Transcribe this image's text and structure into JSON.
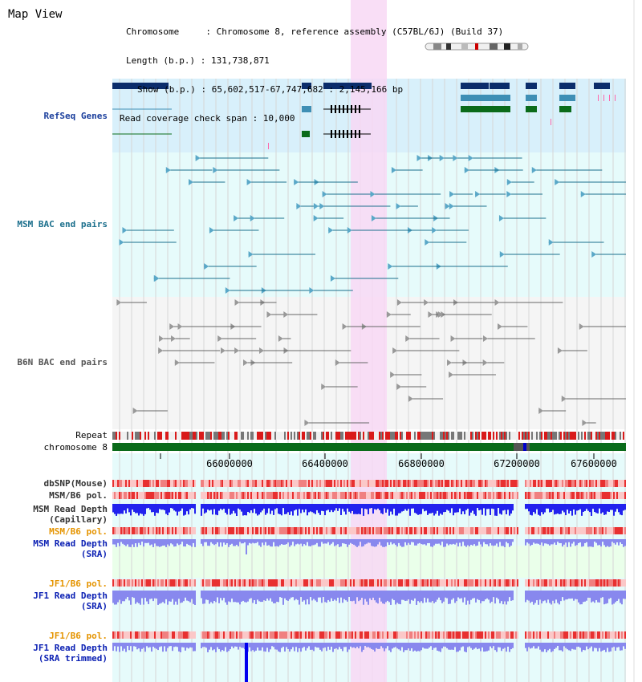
{
  "view": {
    "title": "Map View",
    "info": [
      "Chromosome     : Chromosome 8, reference assembly (C57BL/6J) (Build 37)",
      "Length (b.p.) : 131,738,871",
      "Show (b.p.) : 65,602,517-67,747,682 : 2,145,166 bp",
      "Read coverage check span : 10,000"
    ]
  },
  "tracks": {
    "refseq": "RefSeq Genes",
    "msm_bac": "MSM BAC end pairs",
    "b6n_bac": "B6N BAC end pairs",
    "repeat": "Repeat",
    "chromosome": "chromosome 8",
    "dbsnp": "dbSNP(Mouse)",
    "msm_b6_pol_1": "MSM/B6 pol.",
    "msm_depth_cap_1": "MSM Read Depth",
    "msm_depth_cap_2": "(Capillary)",
    "msm_b6_pol_2": "MSM/B6 pol.",
    "msm_depth_sra_1": "MSM Read Depth",
    "msm_depth_sra_2": "(SRA)",
    "jf1_b6_pol_1": "JF1/B6 pol.",
    "jf1_depth_sra_1": "JF1 Read Depth",
    "jf1_depth_sra_2": "(SRA)",
    "jf1_b6_pol_2": "JF1/B6 pol.",
    "jf1_depth_trim_1": "JF1 Read Depth",
    "jf1_depth_trim_2": "(SRA trimmed)"
  },
  "axis": {
    "ticks": [
      "66000000",
      "66400000",
      "66800000",
      "67200000",
      "67600000"
    ]
  },
  "colors": {
    "refseq_bg": "#d8f0fb",
    "msm_bg": "#e6fbfb",
    "b6n_bg": "#f5f5f5",
    "highlight": "#f8d8f4",
    "gene_dark": "#0b2d6b",
    "gene_mid": "#3f8fb5",
    "gene_green": "#0a6b1a",
    "msm_pair": "#1b6f8c",
    "b6n_pair": "#666666",
    "chromosome": "#0a6b1a",
    "depth_blue": "#2222ee",
    "depth_light": "#8888ee"
  }
}
